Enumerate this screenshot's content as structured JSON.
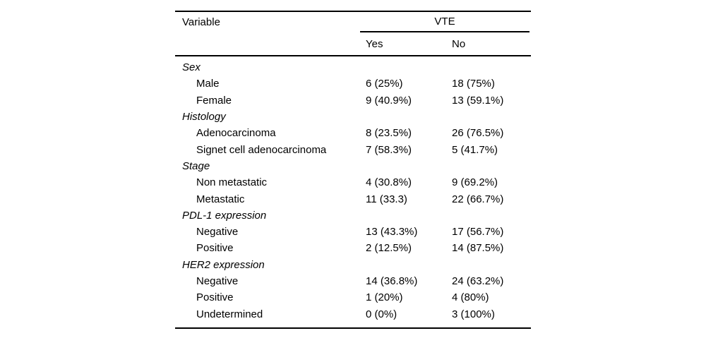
{
  "table": {
    "header": {
      "variable_label": "Variable",
      "spanner_label": "VTE",
      "sub_columns": [
        "Yes",
        "No"
      ]
    },
    "sections": [
      {
        "label": "Sex",
        "rows": [
          {
            "label": "Male",
            "yes": "6 (25%)",
            "no": "18 (75%)"
          },
          {
            "label": "Female",
            "yes": "9 (40.9%)",
            "no": "13 (59.1%)"
          }
        ]
      },
      {
        "label": "Histology",
        "rows": [
          {
            "label": "Adenocarcinoma",
            "yes": "8 (23.5%)",
            "no": "26 (76.5%)"
          },
          {
            "label": "Signet cell adenocarcinoma",
            "yes": "7 (58.3%)",
            "no": "5 (41.7%)"
          }
        ]
      },
      {
        "label": "Stage",
        "rows": [
          {
            "label": "Non metastatic",
            "yes": "4 (30.8%)",
            "no": "9 (69.2%)"
          },
          {
            "label": "Metastatic",
            "yes": "11 (33.3)",
            "no": "22 (66.7%)"
          }
        ]
      },
      {
        "label": "PDL-1 expression",
        "rows": [
          {
            "label": "Negative",
            "yes": "13 (43.3%)",
            "no": "17 (56.7%)"
          },
          {
            "label": "Positive",
            "yes": "2 (12.5%)",
            "no": "14 (87.5%)"
          }
        ]
      },
      {
        "label": "HER2 expression",
        "rows": [
          {
            "label": "Negative",
            "yes": "14 (36.8%)",
            "no": "24 (63.2%)"
          },
          {
            "label": "Positive",
            "yes": "1 (20%)",
            "no": "4 (80%)"
          },
          {
            "label": "Undetermined",
            "yes": "0 (0%)",
            "no": "3 (100%)"
          }
        ]
      }
    ],
    "colors": {
      "text": "#000000",
      "background": "#ffffff",
      "rule": "#000000"
    }
  }
}
